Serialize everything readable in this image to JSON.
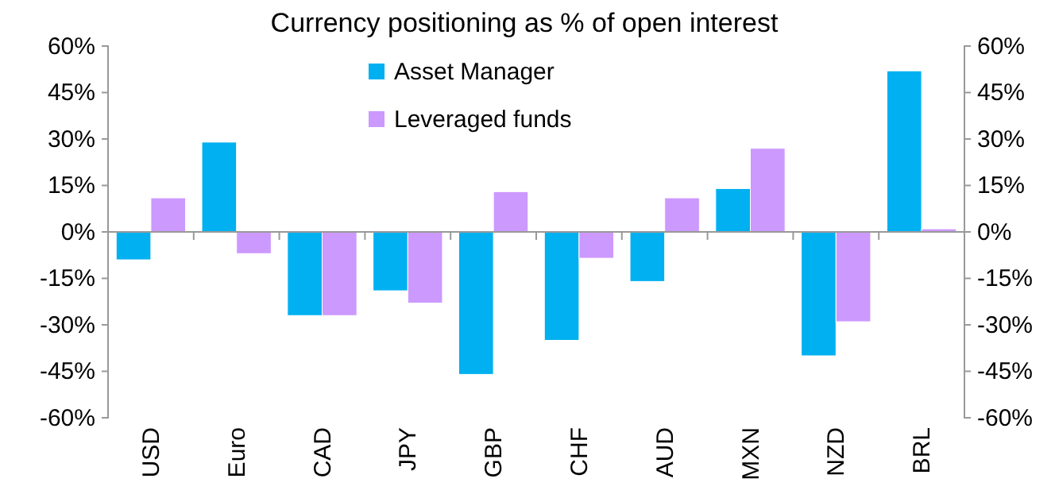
{
  "chart_data": {
    "type": "bar",
    "title": "Currency positioning as % of open interest",
    "categories": [
      "USD",
      "Euro",
      "CAD",
      "JPY",
      "GBP",
      "CHF",
      "AUD",
      "MXN",
      "NZD",
      "BRL"
    ],
    "series": [
      {
        "name": "Asset Manager",
        "color": "#00b0f0",
        "values": [
          -9,
          29,
          -27,
          -19,
          -46,
          -35,
          -16,
          14,
          -40,
          52
        ]
      },
      {
        "name": "Leveraged funds",
        "color": "#cc99ff",
        "values": [
          11,
          -7,
          -27,
          -23,
          13,
          -8.5,
          11,
          27,
          -29,
          1
        ]
      }
    ],
    "ylim": [
      -60,
      60
    ],
    "yticks": [
      {
        "value": -60,
        "label": "-60%"
      },
      {
        "value": -45,
        "label": "-45%"
      },
      {
        "value": -30,
        "label": "-30%"
      },
      {
        "value": -15,
        "label": "-15%"
      },
      {
        "value": 0,
        "label": "0%"
      },
      {
        "value": 15,
        "label": "15%"
      },
      {
        "value": 30,
        "label": "30%"
      },
      {
        "value": 45,
        "label": "45%"
      },
      {
        "value": 60,
        "label": "60%"
      }
    ],
    "y2lim": [
      -60,
      60
    ],
    "y2ticks": [
      {
        "value": -60,
        "label": "-60%"
      },
      {
        "value": -45,
        "label": "-45%"
      },
      {
        "value": -30,
        "label": "-30%"
      },
      {
        "value": -15,
        "label": "-15%"
      },
      {
        "value": 0,
        "label": "0%"
      },
      {
        "value": 15,
        "label": "15%"
      },
      {
        "value": 30,
        "label": "30%"
      },
      {
        "value": 45,
        "label": "45%"
      },
      {
        "value": 60,
        "label": "60%"
      }
    ],
    "legend": "top"
  }
}
